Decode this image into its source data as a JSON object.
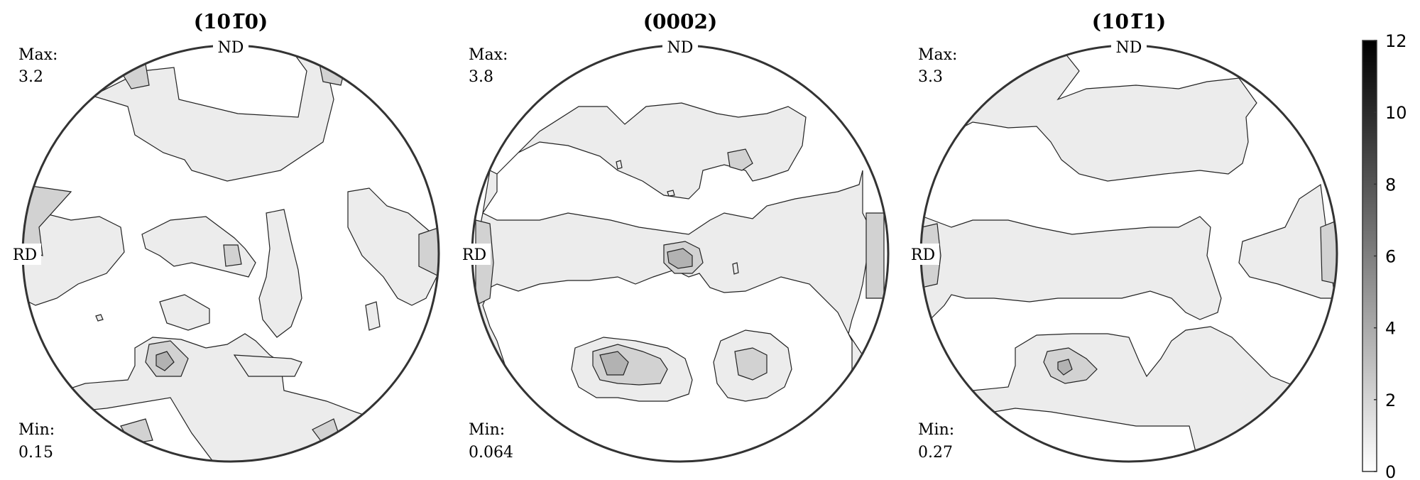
{
  "chart_data": [
    {
      "type": "heatmap",
      "title": "(10̅0)",
      "title_parts": [
        "(",
        "10",
        "1̅",
        "0",
        ")"
      ],
      "direction_labels": {
        "top": "ND",
        "left": "RD"
      },
      "max_label": "Max:",
      "max_value": "3.2",
      "min_label": "Min:",
      "min_value": "0.15"
    },
    {
      "type": "heatmap",
      "title": "(0002)",
      "title_parts": [
        "(",
        "0002",
        "",
        "",
        ")"
      ],
      "direction_labels": {
        "top": "ND",
        "left": "RD"
      },
      "max_label": "Max:",
      "max_value": "3.8",
      "min_label": "Min:",
      "min_value": "0.064"
    },
    {
      "type": "heatmap",
      "title": "(10̅1)",
      "title_parts": [
        "(",
        "10",
        "1̅",
        "1",
        ")"
      ],
      "direction_labels": {
        "top": "ND",
        "left": "RD"
      },
      "max_label": "Max:",
      "max_value": "3.3",
      "min_label": "Min:",
      "min_value": "0.27"
    }
  ],
  "colorbar": {
    "ticks": [
      12,
      10,
      8,
      6,
      4,
      2,
      0
    ],
    "range": [
      0,
      12
    ],
    "colors": {
      "low": "#ffffff",
      "high": "#000000"
    }
  },
  "colors": {
    "level1": "#ececec",
    "level2": "#d2d2d2",
    "level3": "#b2b2b2",
    "outline": "#222222"
  }
}
